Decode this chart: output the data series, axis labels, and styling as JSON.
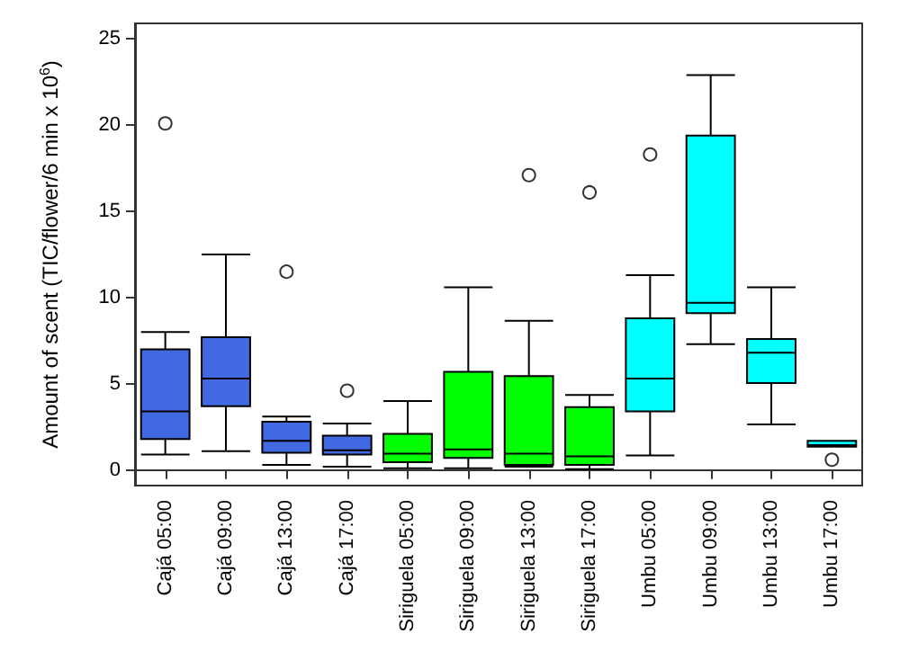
{
  "chart_data": {
    "type": "box",
    "ylabel": "Amount of scent (TIC/flower/6 min x 10$^{6}$)",
    "categories": [
      "Cajá 05:00",
      "Cajá 09:00",
      "Cajá 13:00",
      "Cajá 17:00",
      "Siriguela 05:00",
      "Siriguela 09:00",
      "Siriguela 13:00",
      "Siriguela 17:00",
      "Umbu 05:00",
      "Umbu 09:00",
      "Umbu 13:00",
      "Umbu 17:00"
    ],
    "boxes": [
      {
        "low": 0.9,
        "q1": 1.8,
        "median": 3.4,
        "q3": 7.0,
        "high": 8.0,
        "outliers": [
          20.1
        ]
      },
      {
        "low": 1.1,
        "q1": 3.7,
        "median": 5.3,
        "q3": 7.7,
        "high": 12.5
      },
      {
        "low": 0.3,
        "q1": 1.0,
        "median": 1.7,
        "q3": 2.8,
        "high": 3.1,
        "outliers": [
          11.5
        ]
      },
      {
        "low": 0.2,
        "q1": 0.9,
        "median": 1.15,
        "q3": 2.0,
        "high": 2.7,
        "outliers": [
          4.6
        ]
      },
      {
        "low": 0.1,
        "q1": 0.45,
        "median": 0.95,
        "q3": 2.1,
        "high": 4.0
      },
      {
        "low": 0.1,
        "q1": 0.7,
        "median": 1.2,
        "q3": 5.7,
        "high": 10.6
      },
      {
        "low": 0.2,
        "q1": 0.3,
        "median": 0.95,
        "q3": 5.45,
        "high": 8.65,
        "outliers": [
          17.1
        ]
      },
      {
        "low": 0.05,
        "q1": 0.3,
        "median": 0.8,
        "q3": 3.65,
        "high": 4.35,
        "outliers": [
          16.1
        ]
      },
      {
        "low": 0.85,
        "q1": 3.4,
        "median": 5.3,
        "q3": 8.8,
        "high": 11.3,
        "outliers": [
          18.3
        ]
      },
      {
        "low": 7.3,
        "q1": 9.1,
        "median": 9.7,
        "q3": 19.4,
        "high": 22.9
      },
      {
        "low": 2.65,
        "q1": 5.05,
        "median": 6.8,
        "q3": 7.6,
        "high": 10.6
      },
      {
        "low": 1.35,
        "q1": 1.35,
        "median": 1.45,
        "q3": 1.7,
        "high": 1.7,
        "outliers": [
          0.6
        ]
      }
    ],
    "colors": [
      "#4169e1",
      "#4169e1",
      "#4169e1",
      "#4169e1",
      "#00ff00",
      "#00ff00",
      "#00ff00",
      "#00ff00",
      "#00ffff",
      "#00ffff",
      "#00ffff",
      "#00ffff"
    ],
    "ylim": [
      -0.9,
      25.9
    ],
    "yticks": [
      0,
      5,
      10,
      15,
      20,
      25
    ]
  }
}
